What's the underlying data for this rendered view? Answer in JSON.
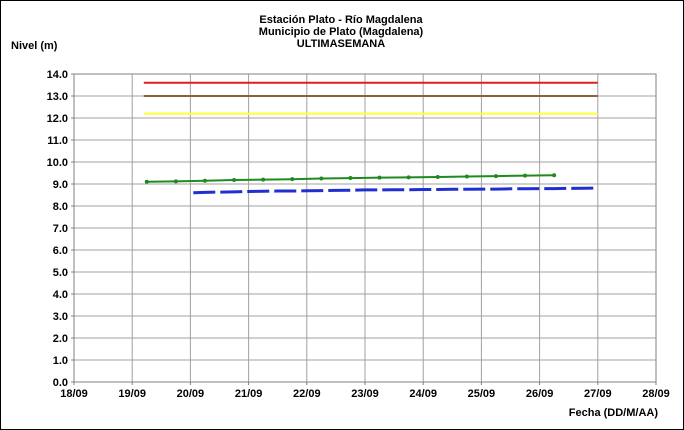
{
  "chart_data": {
    "type": "line",
    "title": [
      "Estación Plato - Río Magdalena",
      "Municipio de Plato (Magdalena)",
      "ULTIMASEMANA"
    ],
    "ylabel": "Nivel (m)",
    "xlabel": "Fecha (DD/M/AA)",
    "ylim": [
      0,
      14
    ],
    "yticks": [
      "0.0",
      "1.0",
      "2.0",
      "3.0",
      "4.0",
      "5.0",
      "6.0",
      "7.0",
      "8.0",
      "9.0",
      "10.0",
      "11.0",
      "12.0",
      "13.0",
      "14.0"
    ],
    "xticks": [
      "18/09",
      "19/09",
      "20/09",
      "21/09",
      "22/09",
      "23/09",
      "24/09",
      "25/09",
      "26/09",
      "27/09",
      "28/09"
    ],
    "grid": true,
    "series": [
      {
        "color": "#dc2020",
        "style": "solid",
        "x": [
          19.2,
          27.0
        ],
        "y": [
          13.6,
          13.6
        ]
      },
      {
        "color": "#8b6040",
        "style": "solid",
        "x": [
          19.2,
          27.0
        ],
        "y": [
          13.0,
          13.0
        ]
      },
      {
        "color": "#ffff33",
        "style": "solid",
        "x": [
          19.2,
          27.0
        ],
        "y": [
          12.2,
          12.2
        ]
      },
      {
        "color": "#1f8a1f",
        "style": "solid-markers",
        "x": [
          19.25,
          19.75,
          20.25,
          20.75,
          21.25,
          21.75,
          22.25,
          22.75,
          23.25,
          23.75,
          24.25,
          24.75,
          25.25,
          25.75,
          26.25
        ],
        "y": [
          9.1,
          9.12,
          9.15,
          9.18,
          9.2,
          9.22,
          9.25,
          9.27,
          9.29,
          9.3,
          9.32,
          9.34,
          9.36,
          9.38,
          9.4
        ]
      },
      {
        "color": "#2030d0",
        "style": "dashed",
        "x": [
          20.05,
          20.25,
          20.5,
          20.75,
          21.0,
          21.25,
          21.5,
          21.75,
          22.0,
          22.25,
          22.5,
          22.75,
          23.0,
          23.25,
          23.5,
          23.75,
          24.0,
          24.25,
          24.5,
          24.75,
          25.0,
          25.25,
          25.5,
          25.75,
          26.0,
          26.25,
          26.5,
          26.75,
          27.0
        ],
        "y": [
          8.6,
          8.62,
          8.63,
          8.64,
          8.66,
          8.67,
          8.68,
          8.68,
          8.69,
          8.7,
          8.71,
          8.72,
          8.73,
          8.73,
          8.74,
          8.74,
          8.75,
          8.75,
          8.76,
          8.76,
          8.77,
          8.77,
          8.78,
          8.78,
          8.79,
          8.79,
          8.8,
          8.81,
          8.82
        ]
      }
    ]
  }
}
